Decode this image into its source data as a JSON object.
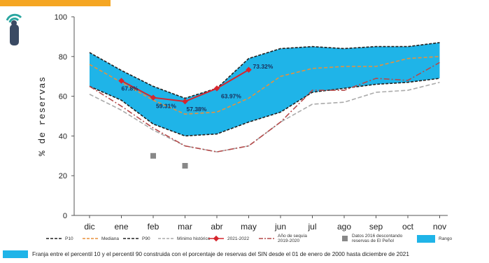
{
  "chart_data": {
    "type": "line",
    "ylabel": "% de reservas",
    "ylim": [
      0,
      100
    ],
    "yticks": [
      0,
      20,
      40,
      60,
      80,
      100
    ],
    "categories": [
      "dic",
      "ene",
      "feb",
      "mar",
      "abr",
      "may",
      "jun",
      "jul",
      "ago",
      "sep",
      "oct",
      "nov"
    ],
    "band": {
      "name": "Rango",
      "color": "#1fb4e8",
      "upper": [
        82,
        73,
        65,
        59,
        64,
        79,
        84,
        85,
        84,
        85,
        85,
        87
      ],
      "lower": [
        65,
        58,
        46,
        40,
        41,
        47,
        52,
        62,
        64,
        66,
        67,
        69
      ]
    },
    "series": [
      {
        "name": "P10",
        "color": "#222222",
        "dash": "4 2",
        "values": [
          65,
          58,
          46,
          40,
          41,
          47,
          52,
          62,
          64,
          66,
          67,
          69
        ]
      },
      {
        "name": "Mediana",
        "color": "#e8913a",
        "dash": "5 3",
        "values": [
          76,
          67,
          58,
          51,
          52,
          59,
          70,
          74,
          75,
          75,
          79,
          80
        ]
      },
      {
        "name": "P90",
        "color": "#222222",
        "dash": "4 2",
        "values": [
          82,
          73,
          65,
          59,
          64,
          79,
          84,
          85,
          84,
          85,
          85,
          87
        ]
      },
      {
        "name": "Mínimo histórico",
        "color": "#aaaaaa",
        "dash": "6 3",
        "values": [
          61,
          53,
          43,
          35,
          32,
          35,
          47,
          56,
          57,
          62,
          63,
          67
        ]
      },
      {
        "name": "Año de sequía 2019-2020",
        "color": "#b54a4a",
        "dash": "8 3 2 3",
        "values": [
          65,
          55,
          44,
          35,
          32,
          35,
          47,
          63,
          63,
          69,
          68,
          77
        ]
      },
      {
        "name": "2021-2022",
        "color": "#d6262e",
        "dash": "",
        "values": [
          67.8,
          59.31,
          57.38,
          63.97,
          73.32,
          null,
          null,
          null,
          null,
          null,
          null,
          null
        ],
        "xstart": 1
      }
    ],
    "data_labels": [
      {
        "cat": "ene",
        "text": "67.8%"
      },
      {
        "cat": "feb",
        "text": "59.31%"
      },
      {
        "cat": "mar",
        "text": "57.38%"
      },
      {
        "cat": "abr",
        "text": "63.97%"
      },
      {
        "cat": "may",
        "text": "73.32%"
      }
    ],
    "extra_points": {
      "name": "Datos 2016 descontando reservas de El Peñol",
      "color": "#888888",
      "points": [
        {
          "x": "feb",
          "y": 30
        },
        {
          "x": "mar",
          "y": 25
        }
      ]
    }
  },
  "legend": {
    "items": [
      {
        "label": "P10",
        "color": "#222222",
        "style": "dash"
      },
      {
        "label": "Mediana",
        "color": "#e8913a",
        "style": "dash"
      },
      {
        "label": "P90",
        "color": "#222222",
        "style": "dash"
      },
      {
        "label": "Mínimo histórico",
        "color": "#aaaaaa",
        "style": "dash"
      },
      {
        "label": "2021-2022",
        "color": "#d6262e",
        "style": "marker"
      },
      {
        "label": "Año de sequía\n2019-2020",
        "color": "#b54a4a",
        "style": "dashdot"
      },
      {
        "label": "Datos 2016 descontando\nreservas de El Peñol",
        "color": "#888888",
        "style": "square"
      },
      {
        "label": "Rango",
        "color": "#1fb4e8",
        "style": "box"
      }
    ]
  },
  "footnote": "Franja entre el percentil 10 y el percentil 90 construida con el porcentaje de reservas del SIN desde el 01 de enero de 2000 hasta diciembre de 2021",
  "colors": {
    "accent_tab": "#f5a623",
    "band": "#1fb4e8"
  }
}
